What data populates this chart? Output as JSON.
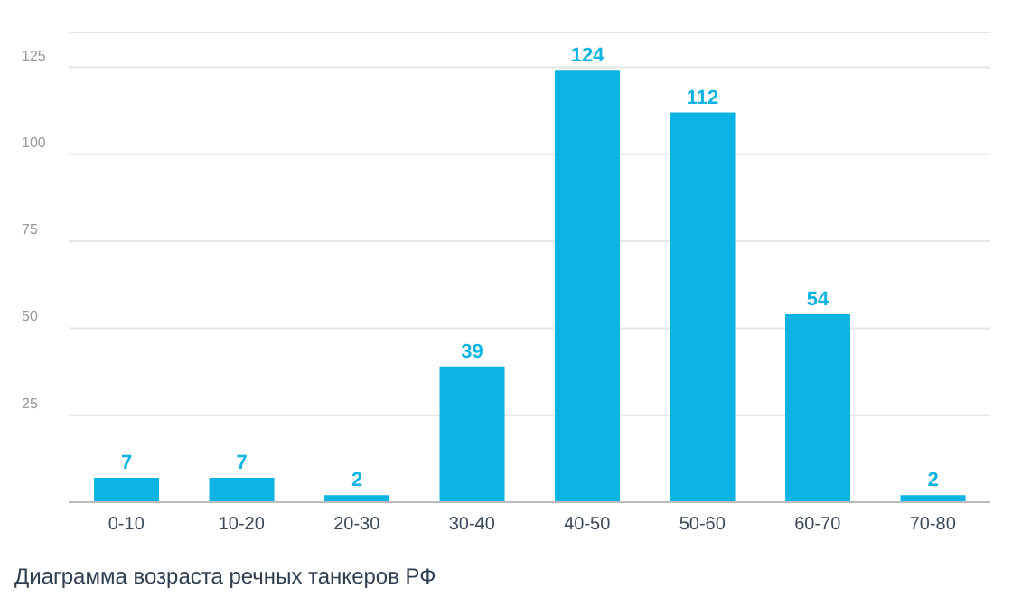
{
  "chart_data": {
    "type": "bar",
    "title": "Диаграмма возраста речных танкеров РФ",
    "categories": [
      "0-10",
      "10-20",
      "20-30",
      "30-40",
      "40-50",
      "50-60",
      "60-70",
      "70-80"
    ],
    "values": [
      7,
      7,
      2,
      39,
      124,
      112,
      54,
      2
    ],
    "color": "#0db3e2",
    "ylim": [
      0,
      135
    ],
    "yticks": [
      25,
      50,
      75,
      100,
      125
    ],
    "grid": "y",
    "data_labels": true
  }
}
